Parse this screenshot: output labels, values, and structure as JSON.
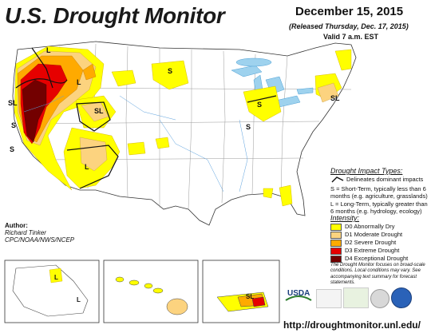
{
  "header": {
    "title": "U.S. Drought Monitor",
    "date": "December 15, 2015",
    "released": "(Released Thursday, Dec. 17, 2015)",
    "valid": "Valid 7 a.m. EST"
  },
  "impact_legend": {
    "title": "Drought Impact Types:",
    "delineates": "Delineates dominant impacts",
    "short_term": "S = Short-Term, typically less than 6 months (e.g. agriculture, grasslands)",
    "long_term": "L = Long-Term, typically greater than 6 months (e.g. hydrology, ecology)"
  },
  "intensity_legend": {
    "title": "Intensity:",
    "items": [
      {
        "label": "D0 Abnormally Dry",
        "color": "#ffff00"
      },
      {
        "label": "D1 Moderate Drought",
        "color": "#fcd37f"
      },
      {
        "label": "D2 Severe Drought",
        "color": "#ffaa00"
      },
      {
        "label": "D3 Extreme Drought",
        "color": "#e60000"
      },
      {
        "label": "D4 Exceptional Drought",
        "color": "#730000"
      }
    ]
  },
  "note": "The Drought Monitor focuses on broad-scale conditions. Local conditions may vary. See accompanying text summary for forecast statements.",
  "author": {
    "label": "Author:",
    "name": "Richard Tinker",
    "org": "CPC/NOAA/NWS/NCEP"
  },
  "map_labels": {
    "L": "L",
    "S": "S",
    "SL": "SL"
  },
  "logos": {
    "usda": "USDA"
  },
  "url": "http://droughtmonitor.unl.edu/"
}
